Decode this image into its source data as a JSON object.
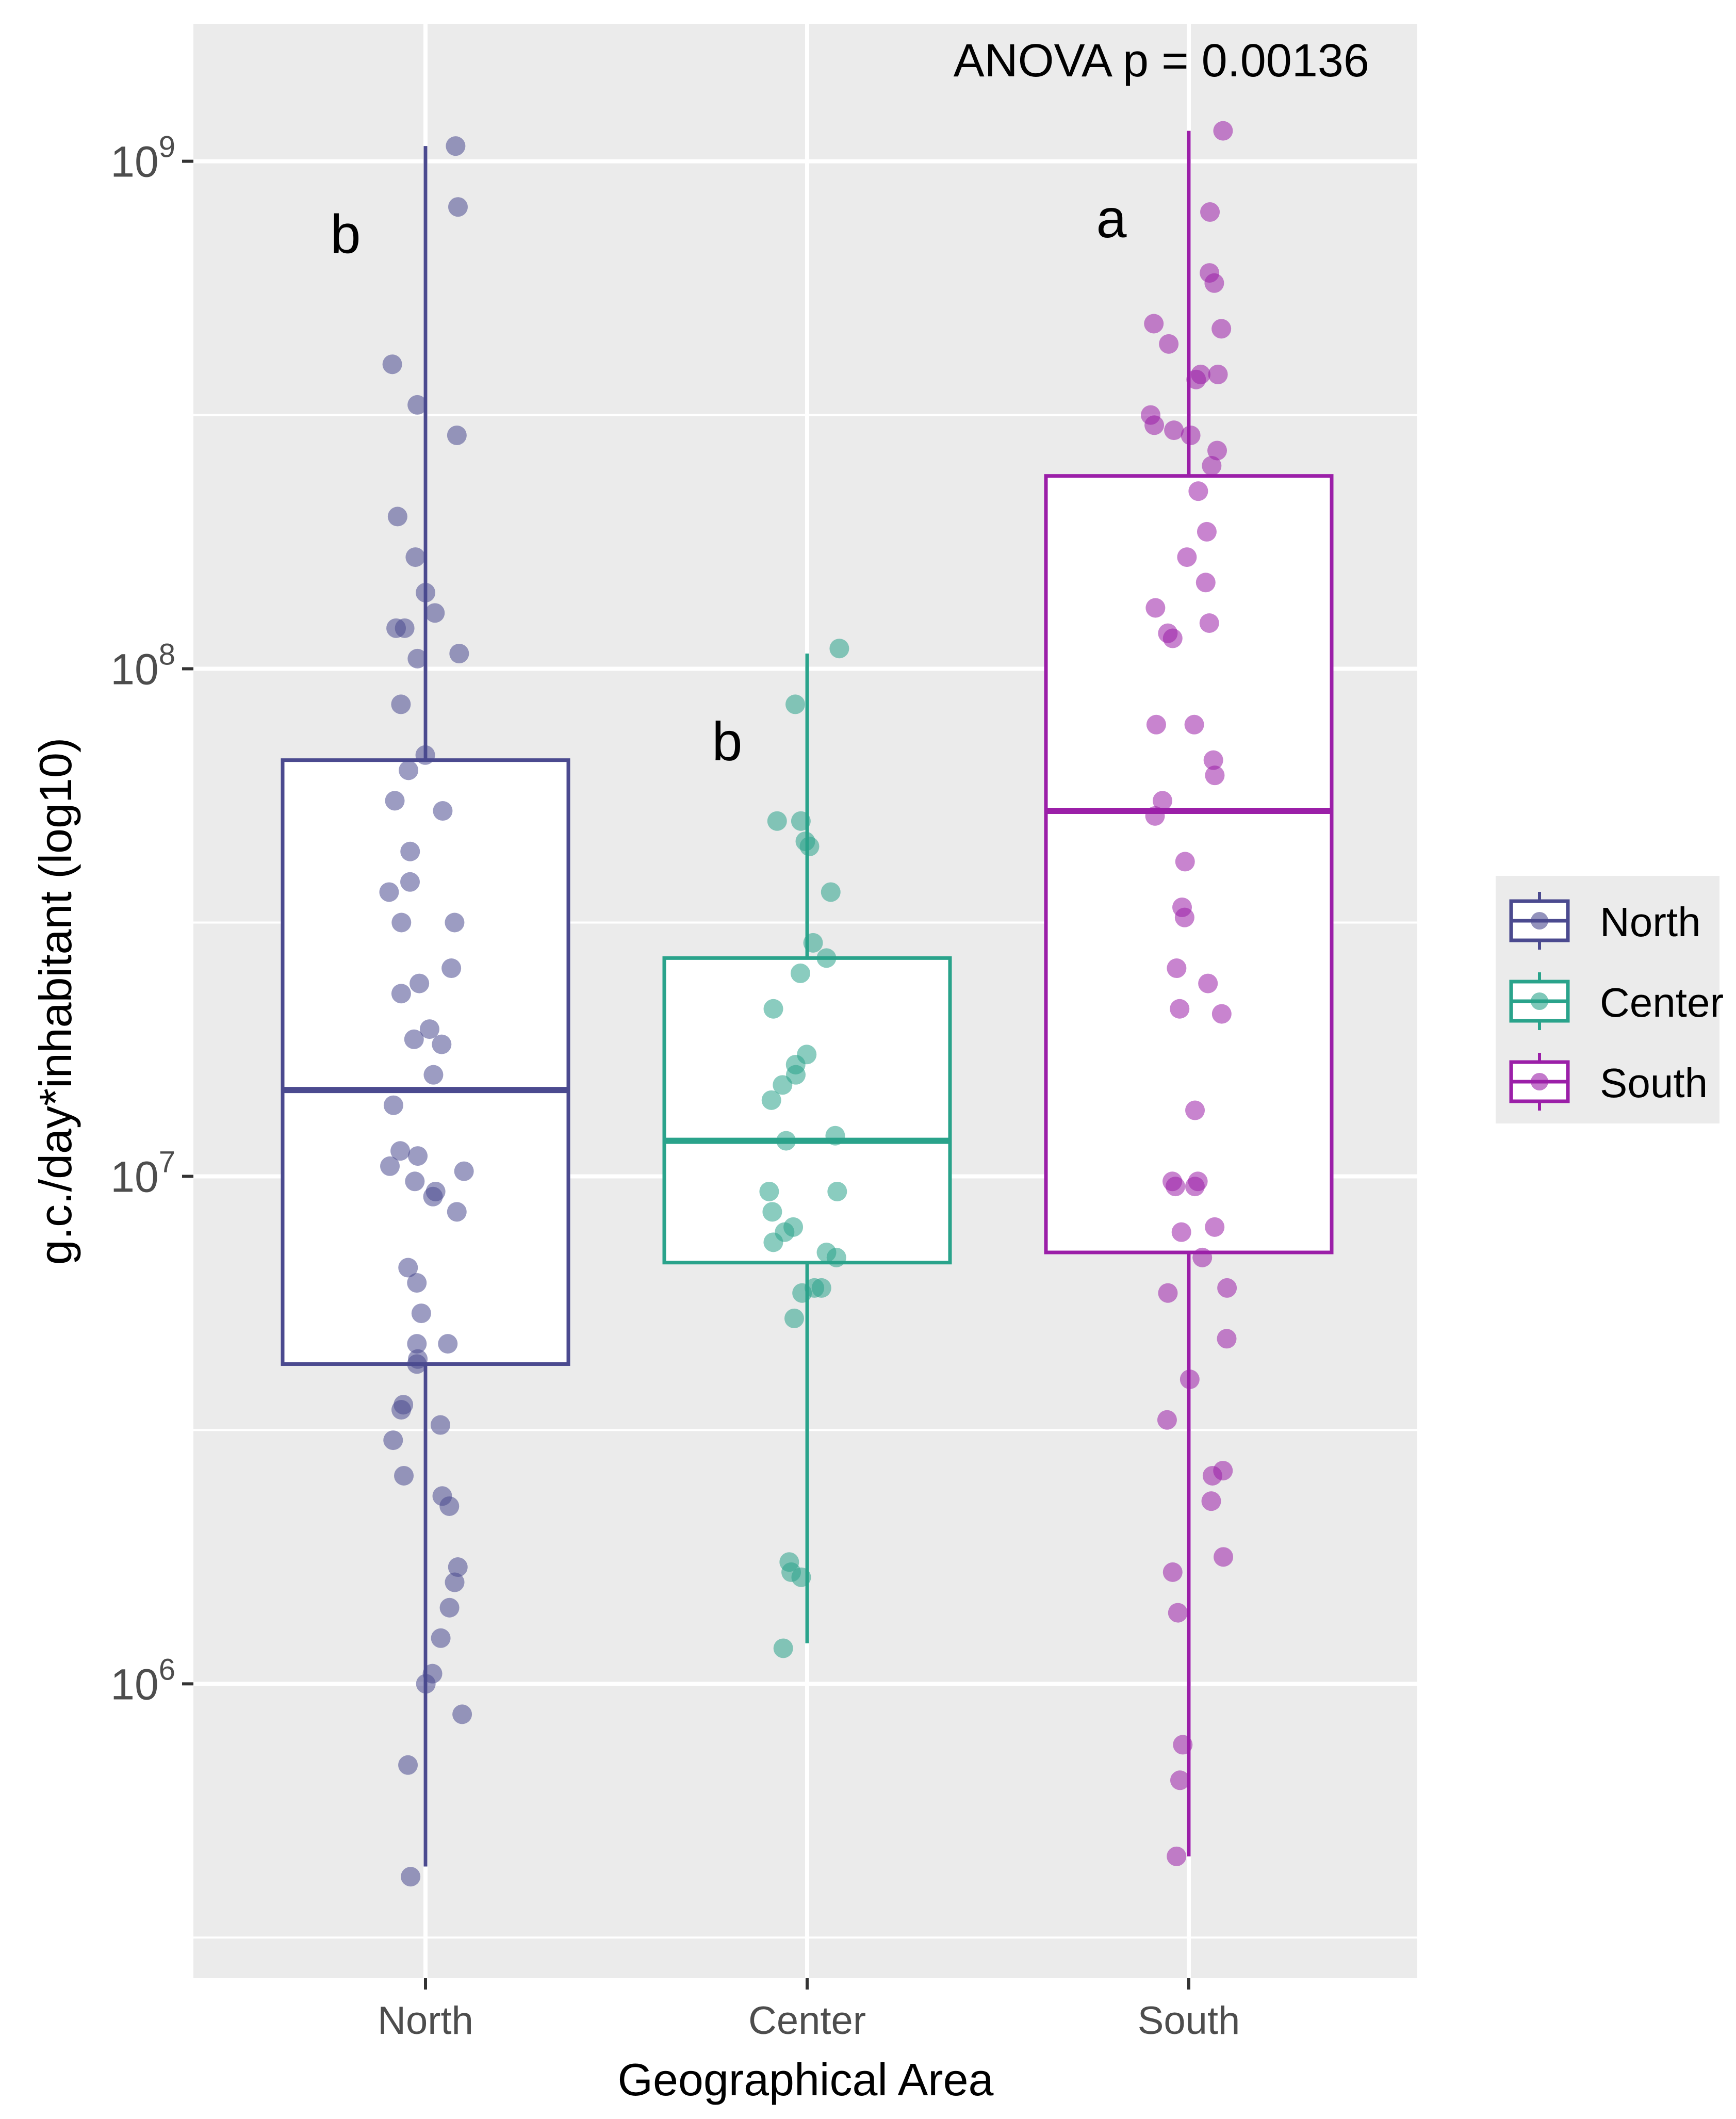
{
  "chart_data": {
    "type": "box",
    "scale": "log10",
    "title": "",
    "annotation": "ANOVA p = 0.00136",
    "xlabel": "Geographical Area",
    "ylabel": "g.c./day*inhabitant (log10)",
    "categories": [
      "North",
      "Center",
      "South"
    ],
    "ylim_log10": [
      5.42,
      9.27
    ],
    "y_ticks": [
      {
        "base": "10",
        "exp": "6",
        "value": 1000000
      },
      {
        "base": "10",
        "exp": "7",
        "value": 10000000
      },
      {
        "base": "10",
        "exp": "8",
        "value": 100000000
      },
      {
        "base": "10",
        "exp": "9",
        "value": 1000000000
      }
    ],
    "legend": {
      "position": "right",
      "entries": [
        {
          "label": "North",
          "color": "#4b4a8f"
        },
        {
          "label": "Center",
          "color": "#2aa38b"
        },
        {
          "label": "South",
          "color": "#9b1fa8"
        }
      ]
    },
    "series": [
      {
        "name": "North",
        "color": "#4b4a8f",
        "letter": "b",
        "letter_log10": 8.82,
        "whisker_low_log10": 5.64,
        "q1_log10": 6.63,
        "median_log10": 7.17,
        "q3_log10": 7.82,
        "whisker_high_log10": 9.03,
        "points_log10": [
          9.03,
          8.91,
          8.6,
          8.52,
          8.46,
          8.3,
          8.22,
          8.15,
          8.11,
          8.08,
          8.08,
          8.03,
          8.02,
          7.93,
          7.83,
          7.8,
          7.74,
          7.72,
          7.64,
          7.58,
          7.56,
          7.5,
          7.5,
          7.41,
          7.38,
          7.36,
          7.29,
          7.27,
          7.26,
          7.2,
          7.14,
          7.05,
          7.04,
          7.02,
          7.01,
          6.99,
          6.97,
          6.96,
          6.93,
          6.82,
          6.79,
          6.73,
          6.67,
          6.67,
          6.64,
          6.63,
          6.55,
          6.54,
          6.51,
          6.48,
          6.41,
          6.37,
          6.35,
          6.23,
          6.2,
          6.15,
          6.09,
          6.02,
          6.0,
          5.94,
          5.84,
          5.62
        ]
      },
      {
        "name": "Center",
        "color": "#2aa38b",
        "letter": "b",
        "letter_log10": 7.82,
        "whisker_low_log10": 6.08,
        "q1_log10": 6.83,
        "median_log10": 7.07,
        "q3_log10": 7.43,
        "whisker_high_log10": 8.03,
        "points_log10": [
          8.04,
          7.93,
          7.7,
          7.7,
          7.66,
          7.65,
          7.56,
          7.46,
          7.43,
          7.4,
          7.33,
          7.24,
          7.22,
          7.2,
          7.18,
          7.15,
          7.08,
          7.07,
          6.97,
          6.97,
          6.93,
          6.9,
          6.89,
          6.87,
          6.85,
          6.84,
          6.78,
          6.78,
          6.77,
          6.72,
          6.24,
          6.22,
          6.21,
          6.07
        ]
      },
      {
        "name": "South",
        "color": "#9b1fa8",
        "letter": "a",
        "letter_log10": 8.85,
        "whisker_low_log10": 5.66,
        "q1_log10": 6.85,
        "median_log10": 7.72,
        "q3_log10": 8.38,
        "whisker_high_log10": 9.06,
        "points_log10": [
          9.06,
          8.9,
          8.78,
          8.76,
          8.68,
          8.67,
          8.64,
          8.58,
          8.58,
          8.57,
          8.5,
          8.48,
          8.47,
          8.46,
          8.43,
          8.4,
          8.35,
          8.27,
          8.22,
          8.17,
          8.12,
          8.09,
          8.07,
          8.06,
          7.89,
          7.89,
          7.82,
          7.79,
          7.74,
          7.71,
          7.62,
          7.53,
          7.51,
          7.41,
          7.38,
          7.33,
          7.32,
          7.13,
          6.99,
          6.99,
          6.98,
          6.98,
          6.9,
          6.89,
          6.84,
          6.78,
          6.77,
          6.68,
          6.6,
          6.52,
          6.42,
          6.41,
          6.36,
          6.25,
          6.22,
          6.14,
          5.88,
          5.81,
          5.66
        ]
      }
    ]
  }
}
